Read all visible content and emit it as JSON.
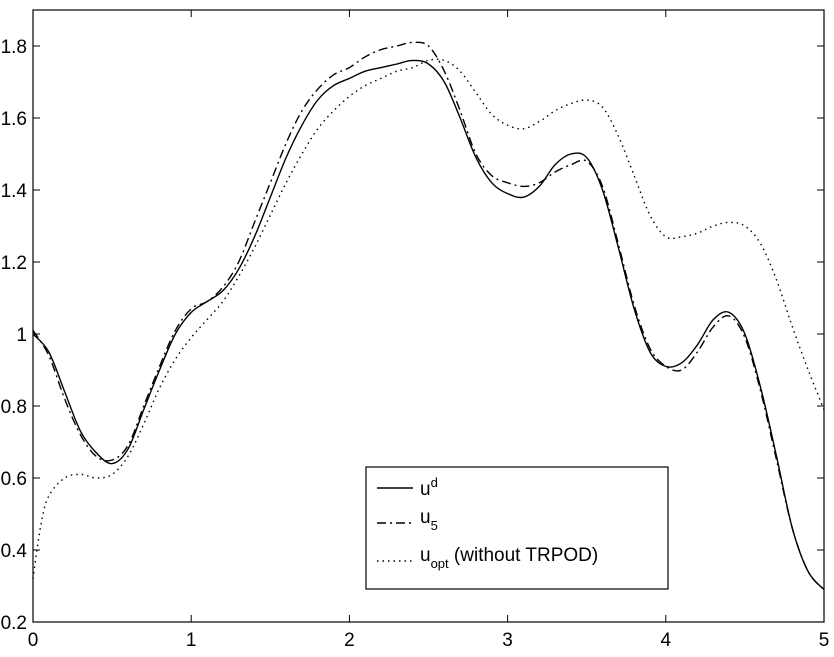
{
  "chart_data": {
    "type": "line",
    "title": "",
    "xlabel": "",
    "ylabel": "",
    "xlim": [
      0,
      5
    ],
    "ylim": [
      0.2,
      1.9
    ],
    "xticks": [
      0,
      1,
      2,
      3,
      4,
      5
    ],
    "xtick_labels": [
      "0",
      "1",
      "2",
      "3",
      "4",
      "5"
    ],
    "yticks": [
      0.2,
      0.4,
      0.6,
      0.8,
      1.0,
      1.2,
      1.4,
      1.6,
      1.8
    ],
    "ytick_labels": [
      "0.2",
      "0.4",
      "0.6",
      "0.8",
      "1",
      "1.2",
      "1.4",
      "1.6",
      "1.8"
    ],
    "grid": false,
    "legend_position": "lower-right",
    "series": [
      {
        "name": "u^d",
        "style": "solid",
        "color": "#000000",
        "x": [
          0,
          0.1,
          0.2,
          0.3,
          0.4,
          0.5,
          0.6,
          0.7,
          0.8,
          0.9,
          1.0,
          1.1,
          1.2,
          1.3,
          1.4,
          1.5,
          1.6,
          1.7,
          1.8,
          1.9,
          2.0,
          2.1,
          2.2,
          2.3,
          2.4,
          2.5,
          2.6,
          2.7,
          2.8,
          2.9,
          3.0,
          3.1,
          3.2,
          3.3,
          3.4,
          3.5,
          3.6,
          3.7,
          3.8,
          3.9,
          4.0,
          4.1,
          4.2,
          4.3,
          4.4,
          4.5,
          4.6,
          4.7,
          4.8,
          4.9,
          5.0
        ],
        "y": [
          1.0,
          0.95,
          0.84,
          0.73,
          0.67,
          0.64,
          0.68,
          0.79,
          0.9,
          1.0,
          1.06,
          1.09,
          1.12,
          1.18,
          1.27,
          1.38,
          1.49,
          1.58,
          1.65,
          1.69,
          1.71,
          1.73,
          1.74,
          1.75,
          1.76,
          1.75,
          1.7,
          1.6,
          1.49,
          1.42,
          1.39,
          1.38,
          1.41,
          1.47,
          1.5,
          1.49,
          1.4,
          1.24,
          1.07,
          0.95,
          0.91,
          0.92,
          0.97,
          1.04,
          1.06,
          1.0,
          0.85,
          0.66,
          0.46,
          0.34,
          0.29
        ]
      },
      {
        "name": "u_5",
        "style": "dashdot",
        "color": "#000000",
        "x": [
          0,
          0.1,
          0.2,
          0.3,
          0.4,
          0.5,
          0.6,
          0.7,
          0.8,
          0.9,
          1.0,
          1.1,
          1.2,
          1.3,
          1.4,
          1.5,
          1.6,
          1.7,
          1.8,
          1.9,
          2.0,
          2.1,
          2.2,
          2.3,
          2.4,
          2.5,
          2.6,
          2.7,
          2.8,
          2.9,
          3.0,
          3.1,
          3.2,
          3.3,
          3.4,
          3.5,
          3.6,
          3.7,
          3.8,
          3.9,
          4.0,
          4.1,
          4.2,
          4.3,
          4.4,
          4.5,
          4.6,
          4.7,
          4.8,
          4.9,
          5.0
        ],
        "y": [
          1.01,
          0.94,
          0.82,
          0.72,
          0.66,
          0.65,
          0.69,
          0.8,
          0.91,
          1.01,
          1.07,
          1.09,
          1.13,
          1.2,
          1.31,
          1.42,
          1.53,
          1.62,
          1.68,
          1.72,
          1.74,
          1.77,
          1.79,
          1.8,
          1.81,
          1.8,
          1.73,
          1.62,
          1.5,
          1.44,
          1.42,
          1.41,
          1.42,
          1.45,
          1.47,
          1.48,
          1.41,
          1.25,
          1.08,
          0.96,
          0.91,
          0.9,
          0.95,
          1.02,
          1.05,
          0.99,
          0.84,
          0.65,
          0.46,
          0.34,
          0.29
        ]
      },
      {
        "name": "u_opt (without TRPOD)",
        "style": "dotted",
        "color": "#000000",
        "x": [
          0,
          0.05,
          0.1,
          0.2,
          0.3,
          0.4,
          0.5,
          0.6,
          0.7,
          0.8,
          0.9,
          1.0,
          1.1,
          1.2,
          1.3,
          1.4,
          1.5,
          1.6,
          1.7,
          1.8,
          1.9,
          2.0,
          2.1,
          2.2,
          2.3,
          2.4,
          2.5,
          2.6,
          2.7,
          2.8,
          2.9,
          3.0,
          3.1,
          3.2,
          3.3,
          3.4,
          3.5,
          3.6,
          3.7,
          3.8,
          3.9,
          4.0,
          4.1,
          4.2,
          4.3,
          4.4,
          4.5,
          4.6,
          4.7,
          4.8,
          4.9,
          5.0
        ],
        "y": [
          0.32,
          0.47,
          0.55,
          0.6,
          0.61,
          0.6,
          0.61,
          0.66,
          0.75,
          0.85,
          0.93,
          0.99,
          1.04,
          1.09,
          1.16,
          1.24,
          1.33,
          1.42,
          1.5,
          1.57,
          1.62,
          1.66,
          1.69,
          1.71,
          1.73,
          1.74,
          1.76,
          1.76,
          1.73,
          1.67,
          1.61,
          1.58,
          1.57,
          1.59,
          1.62,
          1.64,
          1.65,
          1.63,
          1.55,
          1.44,
          1.33,
          1.27,
          1.27,
          1.28,
          1.3,
          1.31,
          1.3,
          1.25,
          1.15,
          1.02,
          0.9,
          0.79
        ]
      }
    ]
  },
  "legend": {
    "entries": [
      {
        "base": "u",
        "sup": "d",
        "sub": "",
        "tail": ""
      },
      {
        "base": "u",
        "sup": "",
        "sub": "5",
        "tail": ""
      },
      {
        "base": "u",
        "sup": "",
        "sub": "opt",
        "tail": " (without TRPOD)"
      }
    ]
  }
}
